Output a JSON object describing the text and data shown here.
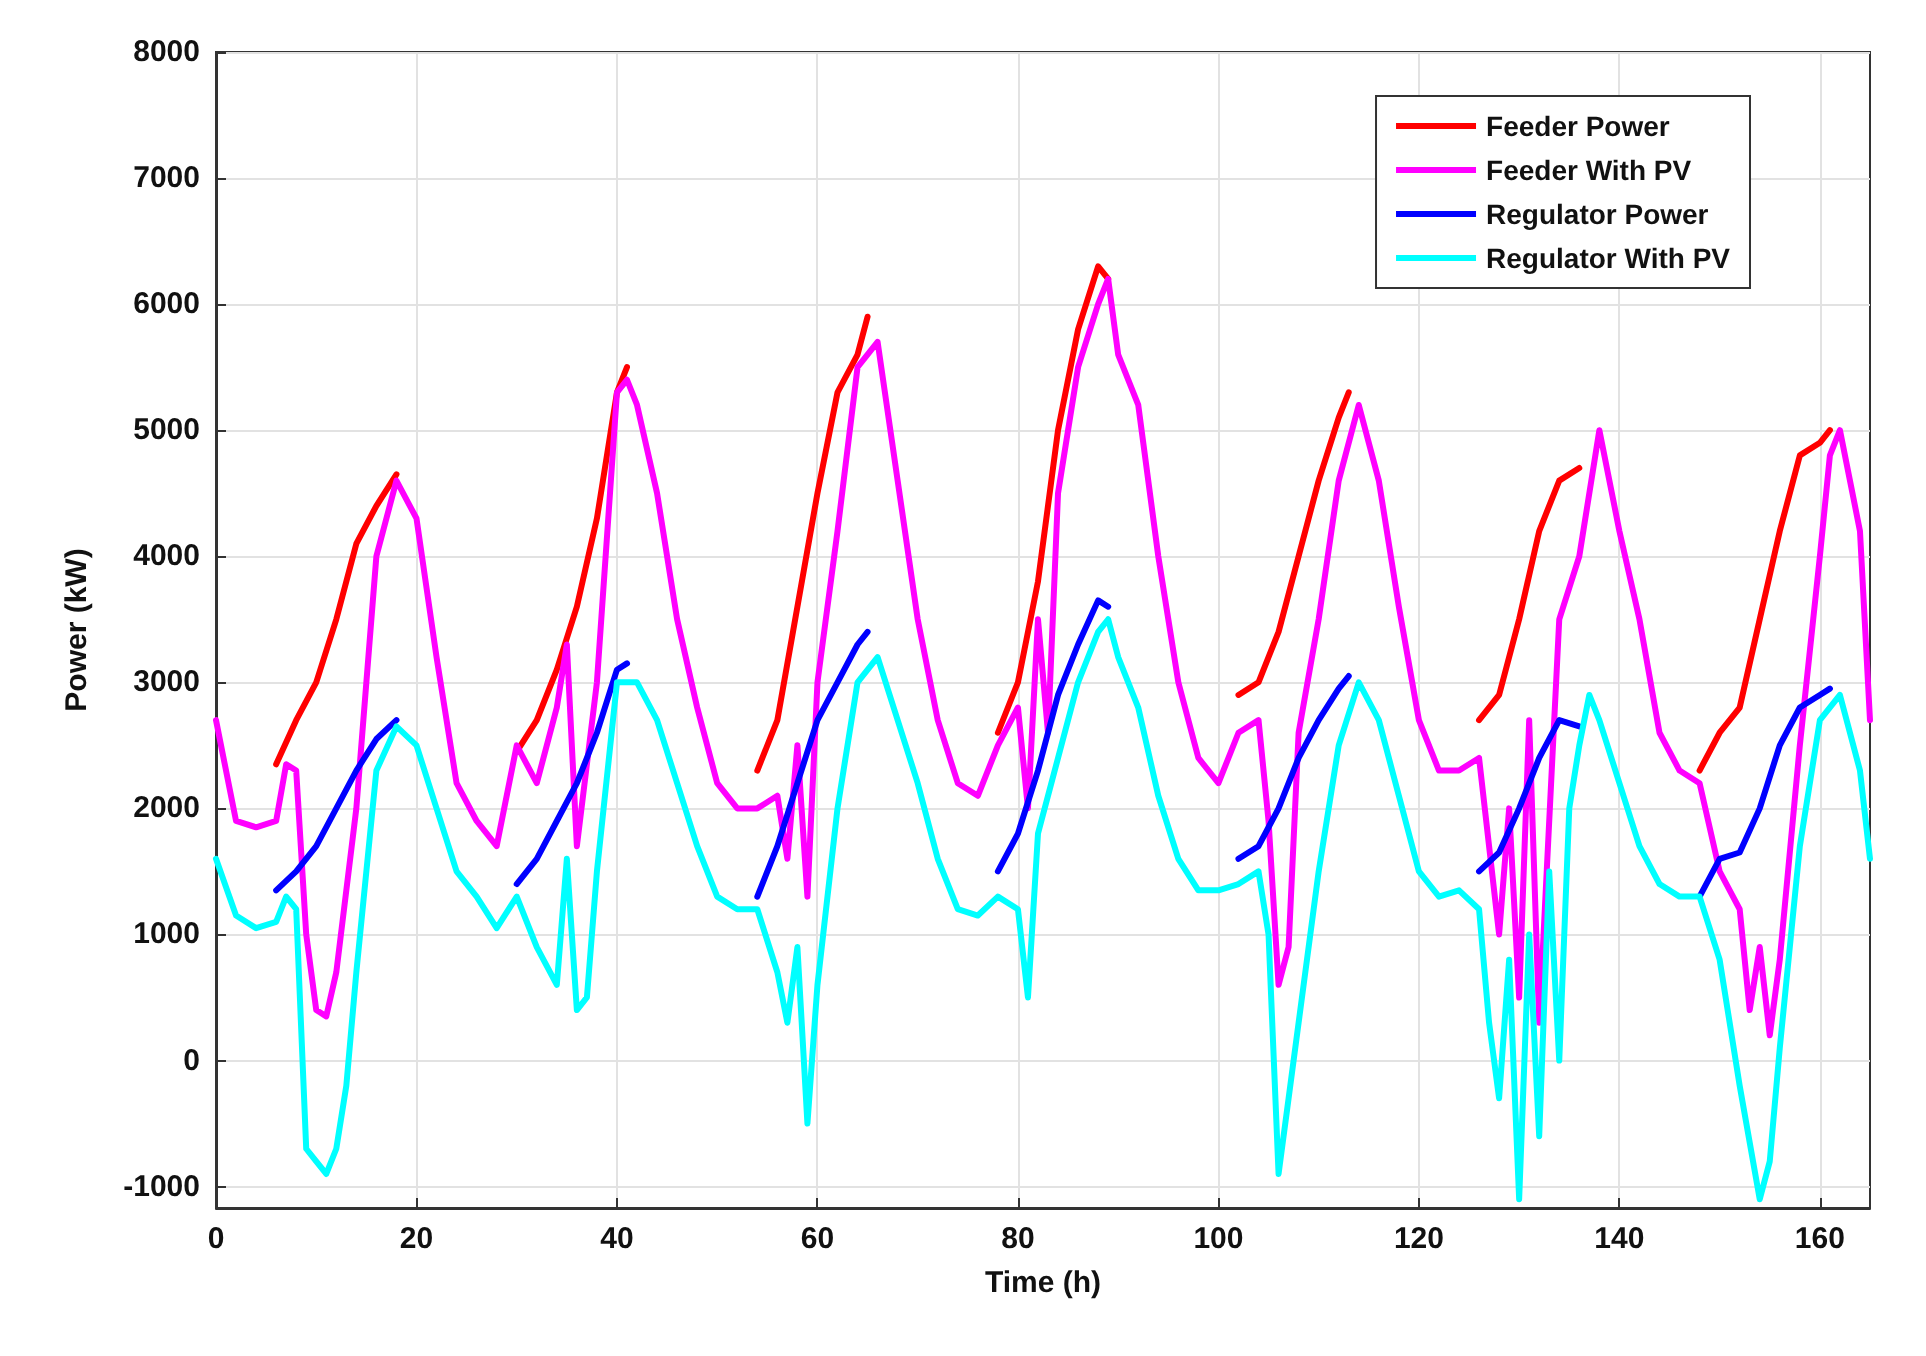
{
  "chart_data": {
    "type": "line",
    "xlabel": "Time (h)",
    "ylabel": "Power (kW)",
    "xlim": [
      0,
      165
    ],
    "xticks": [
      0,
      20,
      40,
      60,
      80,
      100,
      120,
      140,
      160
    ],
    "ylim": [
      -1170,
      8000
    ],
    "yticks": [
      -1000,
      0,
      1000,
      2000,
      3000,
      4000,
      5000,
      6000,
      7000,
      8000
    ],
    "grid": true,
    "legend": "top right",
    "marker": "none",
    "line_style": "solid",
    "series": [
      {
        "name": "Feeder Power",
        "color": "#ff0000",
        "x": [
          6,
          8,
          10,
          12,
          14,
          16,
          18,
          19,
          30,
          32,
          34,
          36,
          38,
          40,
          41,
          42,
          54,
          56,
          58,
          60,
          62,
          64,
          65,
          66,
          78,
          80,
          82,
          84,
          86,
          88,
          89,
          90,
          102,
          104,
          106,
          108,
          110,
          112,
          113,
          114,
          126,
          128,
          130,
          132,
          134,
          136,
          137,
          148,
          150,
          152,
          154,
          156,
          158,
          160,
          161
        ],
        "values": [
          2350,
          2700,
          3000,
          3500,
          4100,
          4400,
          4650,
          null,
          2450,
          2700,
          3100,
          3600,
          4300,
          5300,
          5500,
          null,
          2300,
          2700,
          3600,
          4500,
          5300,
          5600,
          5900,
          null,
          2600,
          3000,
          3800,
          5000,
          5800,
          6300,
          6200,
          null,
          2900,
          3000,
          3400,
          4000,
          4600,
          5100,
          5300,
          null,
          2700,
          2900,
          3500,
          4200,
          4600,
          4700,
          null,
          2300,
          2600,
          2800,
          3500,
          4200,
          4800,
          4900,
          5000
        ]
      },
      {
        "name": "Feeder With PV",
        "color": "#ff00ff",
        "x": [
          0,
          2,
          4,
          6,
          7,
          8,
          9,
          10,
          11,
          12,
          14,
          16,
          18,
          20,
          22,
          24,
          26,
          28,
          30,
          32,
          34,
          35,
          36,
          38,
          40,
          41,
          42,
          44,
          46,
          48,
          50,
          52,
          54,
          56,
          57,
          58,
          59,
          60,
          62,
          64,
          66,
          68,
          70,
          72,
          74,
          76,
          78,
          80,
          81,
          82,
          83,
          84,
          86,
          88,
          89,
          90,
          92,
          94,
          96,
          98,
          100,
          102,
          104,
          105,
          106,
          107,
          108,
          110,
          112,
          114,
          116,
          118,
          120,
          122,
          124,
          126,
          128,
          129,
          130,
          131,
          132,
          134,
          136,
          138,
          140,
          142,
          144,
          146,
          148,
          150,
          152,
          153,
          154,
          155,
          156,
          158,
          160,
          161,
          162,
          164,
          165
        ],
        "values": [
          2700,
          1900,
          1850,
          1900,
          2350,
          2300,
          1000,
          400,
          350,
          700,
          2000,
          4000,
          4600,
          4300,
          3200,
          2200,
          1900,
          1700,
          2500,
          2200,
          2800,
          3300,
          1700,
          3000,
          5300,
          5400,
          5200,
          4500,
          3500,
          2800,
          2200,
          2000,
          2000,
          2100,
          1600,
          2500,
          1300,
          3000,
          4200,
          5500,
          5700,
          4600,
          3500,
          2700,
          2200,
          2100,
          2500,
          2800,
          2000,
          3500,
          2600,
          4500,
          5500,
          6000,
          6200,
          5600,
          5200,
          4000,
          3000,
          2400,
          2200,
          2600,
          2700,
          1900,
          600,
          900,
          2600,
          3500,
          4600,
          5200,
          4600,
          3600,
          2700,
          2300,
          2300,
          2400,
          1000,
          2000,
          500,
          2700,
          300,
          3500,
          4000,
          5000,
          4200,
          3500,
          2600,
          2300,
          2200,
          1500,
          1200,
          400,
          900,
          200,
          800,
          2500,
          4000,
          4800,
          5000,
          4200,
          2700
        ]
      },
      {
        "name": "Regulator Power",
        "color": "#0000ff",
        "x": [
          6,
          8,
          10,
          12,
          14,
          16,
          18,
          19,
          30,
          32,
          34,
          36,
          38,
          40,
          41,
          42,
          54,
          56,
          58,
          60,
          62,
          64,
          65,
          66,
          78,
          80,
          82,
          84,
          86,
          88,
          89,
          90,
          102,
          104,
          106,
          108,
          110,
          112,
          113,
          114,
          126,
          128,
          130,
          132,
          134,
          136,
          137,
          148,
          150,
          152,
          154,
          156,
          158,
          160,
          161
        ],
        "values": [
          1350,
          1500,
          1700,
          2000,
          2300,
          2550,
          2700,
          null,
          1400,
          1600,
          1900,
          2200,
          2600,
          3100,
          3150,
          null,
          1300,
          1700,
          2200,
          2700,
          3000,
          3300,
          3400,
          null,
          1500,
          1800,
          2300,
          2900,
          3300,
          3650,
          3600,
          null,
          1600,
          1700,
          2000,
          2400,
          2700,
          2950,
          3050,
          null,
          1500,
          1650,
          2000,
          2400,
          2700,
          2650,
          null,
          1300,
          1600,
          1650,
          2000,
          2500,
          2800,
          2900,
          2950
        ]
      },
      {
        "name": "Regulator With PV",
        "color": "#00ffff",
        "x": [
          0,
          2,
          4,
          6,
          7,
          8,
          9,
          10,
          11,
          12,
          13,
          14,
          16,
          18,
          20,
          22,
          24,
          26,
          28,
          30,
          32,
          34,
          35,
          36,
          37,
          38,
          40,
          42,
          44,
          46,
          48,
          50,
          52,
          54,
          56,
          57,
          58,
          59,
          60,
          62,
          64,
          66,
          68,
          70,
          72,
          74,
          76,
          78,
          80,
          81,
          82,
          84,
          86,
          88,
          89,
          90,
          92,
          94,
          96,
          98,
          100,
          102,
          104,
          105,
          106,
          107,
          108,
          110,
          112,
          114,
          116,
          118,
          120,
          122,
          124,
          126,
          127,
          128,
          129,
          130,
          131,
          132,
          133,
          134,
          135,
          136,
          137,
          138,
          140,
          142,
          144,
          146,
          148,
          150,
          152,
          154,
          155,
          156,
          158,
          160,
          162,
          164,
          165
        ],
        "values": [
          1600,
          1150,
          1050,
          1100,
          1300,
          1200,
          -700,
          -800,
          -900,
          -700,
          -200,
          700,
          2300,
          2650,
          2500,
          2000,
          1500,
          1300,
          1050,
          1300,
          900,
          600,
          1600,
          400,
          500,
          1500,
          3000,
          3000,
          2700,
          2200,
          1700,
          1300,
          1200,
          1200,
          700,
          300,
          900,
          -500,
          600,
          2000,
          3000,
          3200,
          2700,
          2200,
          1600,
          1200,
          1150,
          1300,
          1200,
          500,
          1800,
          2400,
          3000,
          3400,
          3500,
          3200,
          2800,
          2100,
          1600,
          1350,
          1350,
          1400,
          1500,
          1000,
          -900,
          -300,
          300,
          1500,
          2500,
          3000,
          2700,
          2100,
          1500,
          1300,
          1350,
          1200,
          300,
          -300,
          800,
          -1100,
          1000,
          -600,
          1500,
          0,
          2000,
          2500,
          2900,
          2700,
          2200,
          1700,
          1400,
          1300,
          1300,
          800,
          -200,
          -1100,
          -800,
          100,
          1700,
          2700,
          2900,
          2300,
          1600
        ]
      }
    ]
  }
}
